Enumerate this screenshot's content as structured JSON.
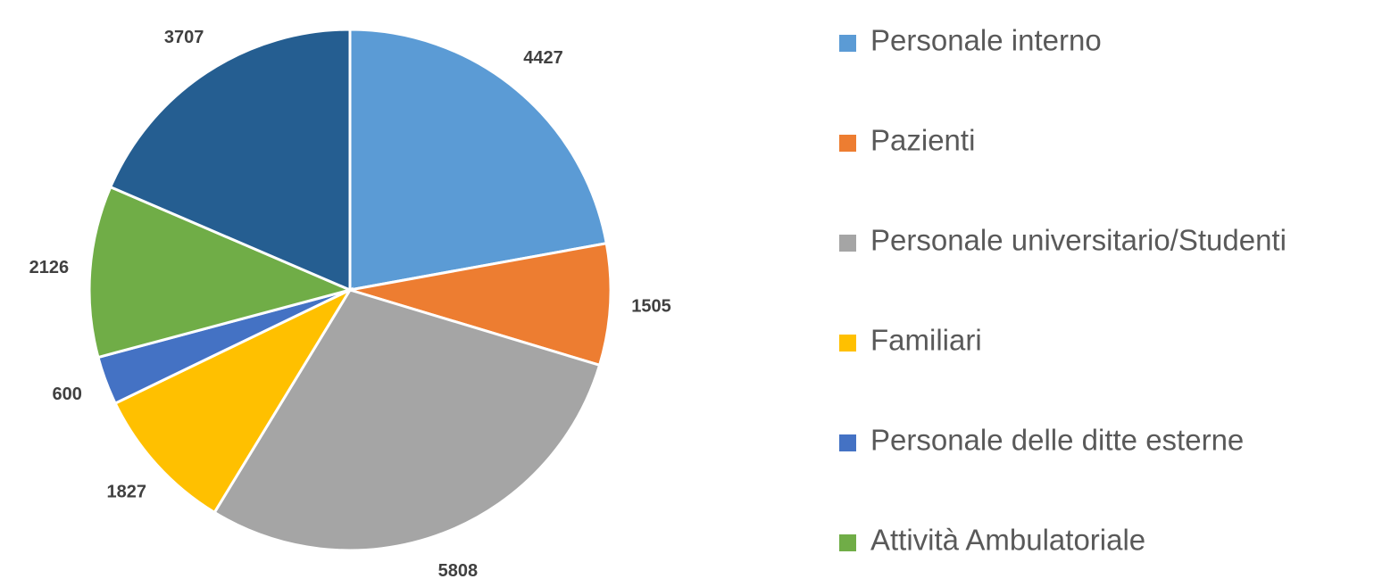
{
  "chart_data": {
    "type": "pie",
    "categories": [
      "Personale interno",
      "Pazienti",
      "Personale universitario/Studenti",
      "Familiari",
      "Personale delle ditte esterne",
      "Attività Ambulatoriale",
      null
    ],
    "values": [
      4427,
      1505,
      5808,
      1827,
      600,
      2126,
      3707
    ],
    "colors": [
      "#5b9bd5",
      "#ed7d31",
      "#a5a5a5",
      "#ffc000",
      "#4472c4",
      "#70ad47",
      "#255e91"
    ],
    "legend": "right"
  }
}
